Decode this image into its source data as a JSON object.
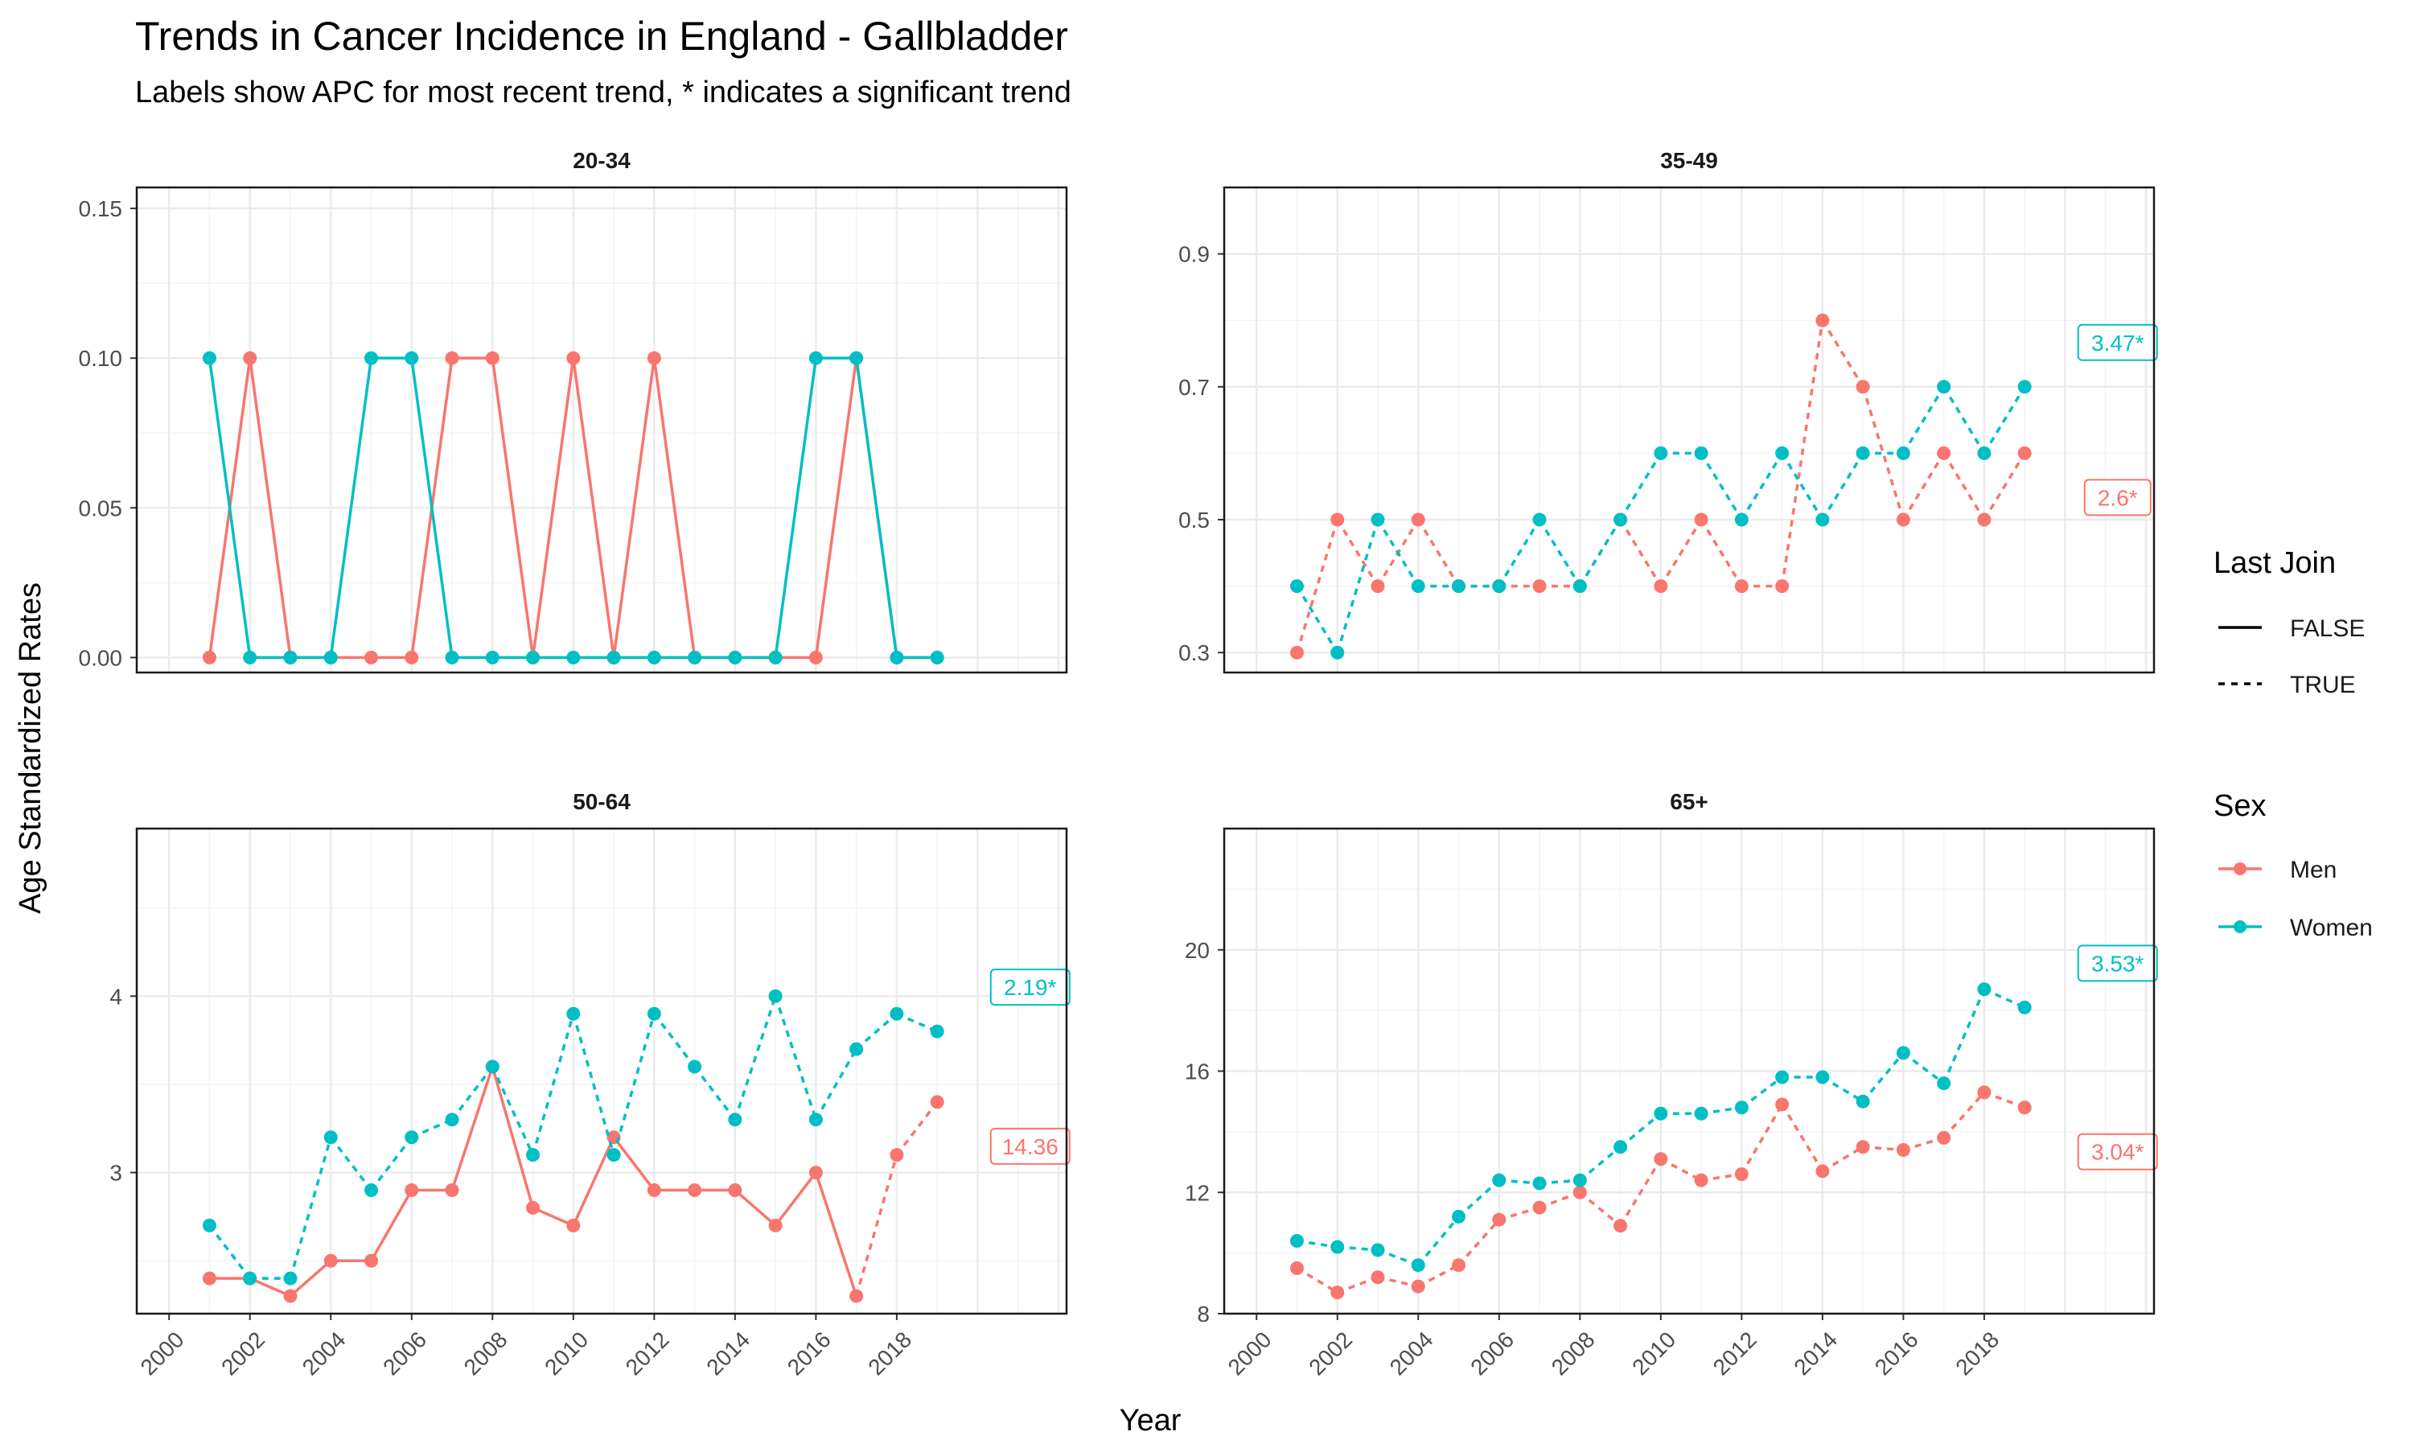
{
  "title": "Trends in Cancer Incidence in England - Gallbladder",
  "subtitle": "Labels show APC for most recent trend, * indicates a significant trend",
  "xlabel": "Year",
  "ylabel": "Age Standardized Rates",
  "colors": {
    "Men": "#F8766D",
    "Women": "#00BFC4",
    "grid_major": "#EBEBEB",
    "grid_minor": "#F4F4F4"
  },
  "legend": {
    "position": "right",
    "last_join": {
      "title": "Last Join",
      "items": [
        {
          "label": "FALSE",
          "linetype": "solid"
        },
        {
          "label": "TRUE",
          "linetype": "dashed"
        }
      ]
    },
    "sex": {
      "title": "Sex",
      "items": [
        {
          "label": "Men",
          "color": "#F8766D"
        },
        {
          "label": "Women",
          "color": "#00BFC4"
        }
      ]
    }
  },
  "chart_data": [
    {
      "type": "line",
      "panel": "20-34",
      "xlim": [
        1999.2,
        2022.2
      ],
      "ylim": [
        -0.005,
        0.157
      ],
      "x_ticks": [
        "2000",
        "2002",
        "2004",
        "2006",
        "2008",
        "2010",
        "2012",
        "2014",
        "2016",
        "2018"
      ],
      "y_ticks": [
        0.0,
        0.05,
        0.1,
        0.15
      ],
      "y_tick_labels": [
        "0.00",
        "0.05",
        "0.10",
        "0.15"
      ],
      "show_x_ticks": false,
      "series": [
        {
          "name": "Men",
          "x": [
            2001,
            2002,
            2003,
            2004,
            2005,
            2006,
            2007,
            2008,
            2009,
            2010,
            2011,
            2012,
            2013,
            2014,
            2015,
            2016,
            2017,
            2018,
            2019
          ],
          "y": [
            0,
            0.1,
            0,
            0,
            0,
            0,
            0.1,
            0.1,
            0,
            0.1,
            0,
            0.1,
            0,
            0,
            0,
            0,
            0.1,
            0,
            0
          ],
          "last_join_from": null,
          "apc": null
        },
        {
          "name": "Women",
          "x": [
            2001,
            2002,
            2003,
            2004,
            2005,
            2006,
            2007,
            2008,
            2009,
            2010,
            2011,
            2012,
            2013,
            2014,
            2015,
            2016,
            2017,
            2018,
            2019
          ],
          "y": [
            0.1,
            0,
            0,
            0,
            0.1,
            0.1,
            0,
            0,
            0,
            0,
            0,
            0,
            0,
            0,
            0,
            0.1,
            0.1,
            0,
            0
          ],
          "last_join_from": null,
          "apc": null
        }
      ]
    },
    {
      "type": "line",
      "panel": "35-49",
      "xlim": [
        1999.2,
        2022.2
      ],
      "ylim": [
        0.27,
        1.0
      ],
      "x_ticks": [
        "2000",
        "2002",
        "2004",
        "2006",
        "2008",
        "2010",
        "2012",
        "2014",
        "2016",
        "2018"
      ],
      "y_ticks": [
        0.3,
        0.5,
        0.7,
        0.9
      ],
      "y_tick_labels": [
        "0.3",
        "0.5",
        "0.7",
        "0.9"
      ],
      "show_x_ticks": false,
      "series": [
        {
          "name": "Men",
          "x": [
            2001,
            2002,
            2003,
            2004,
            2005,
            2006,
            2007,
            2008,
            2009,
            2010,
            2011,
            2012,
            2013,
            2014,
            2015,
            2016,
            2017,
            2018,
            2019
          ],
          "y": [
            0.3,
            0.5,
            0.4,
            0.5,
            0.4,
            0.4,
            0.4,
            0.4,
            0.5,
            0.4,
            0.5,
            0.4,
            0.4,
            0.8,
            0.7,
            0.5,
            0.6,
            0.5,
            0.6
          ],
          "last_join_from": 2001,
          "apc": "2.6*"
        },
        {
          "name": "Women",
          "x": [
            2001,
            2002,
            2003,
            2004,
            2005,
            2006,
            2007,
            2008,
            2009,
            2010,
            2011,
            2012,
            2013,
            2014,
            2015,
            2016,
            2017,
            2018,
            2019
          ],
          "y": [
            0.4,
            0.3,
            0.5,
            0.4,
            0.4,
            0.4,
            0.5,
            0.4,
            0.5,
            0.6,
            0.6,
            0.5,
            0.6,
            0.5,
            0.6,
            0.6,
            0.7,
            0.6,
            0.7
          ],
          "last_join_from": 2001,
          "apc": "3.47*"
        }
      ]
    },
    {
      "type": "line",
      "panel": "50-64",
      "xlim": [
        1999.2,
        2022.2
      ],
      "ylim": [
        2.2,
        4.95
      ],
      "x_ticks": [
        "2000",
        "2002",
        "2004",
        "2006",
        "2008",
        "2010",
        "2012",
        "2014",
        "2016",
        "2018"
      ],
      "y_ticks": [
        3,
        4
      ],
      "y_tick_labels": [
        "3",
        "4"
      ],
      "show_x_ticks": true,
      "series": [
        {
          "name": "Men",
          "x": [
            2001,
            2002,
            2003,
            2004,
            2005,
            2006,
            2007,
            2008,
            2009,
            2010,
            2011,
            2012,
            2013,
            2014,
            2015,
            2016,
            2017,
            2018,
            2019
          ],
          "y": [
            2.4,
            2.4,
            2.3,
            2.5,
            2.5,
            2.9,
            2.9,
            3.6,
            2.8,
            2.7,
            3.2,
            2.9,
            2.9,
            2.9,
            2.7,
            3.0,
            2.3,
            3.1,
            3.4
          ],
          "last_join_from": 2017,
          "apc": "14.36"
        },
        {
          "name": "Women",
          "x": [
            2001,
            2002,
            2003,
            2004,
            2005,
            2006,
            2007,
            2008,
            2009,
            2010,
            2011,
            2012,
            2013,
            2014,
            2015,
            2016,
            2017,
            2018,
            2019
          ],
          "y": [
            2.7,
            2.4,
            2.4,
            3.2,
            2.9,
            3.2,
            3.3,
            3.6,
            3.1,
            3.9,
            3.1,
            3.9,
            3.6,
            3.3,
            4.0,
            3.3,
            3.7,
            3.9,
            3.8
          ],
          "last_join_from": 2001,
          "apc": "2.19*"
        }
      ]
    },
    {
      "type": "line",
      "panel": "65+",
      "xlim": [
        1999.2,
        2022.2
      ],
      "ylim": [
        8.0,
        24.0
      ],
      "x_ticks": [
        "2000",
        "2002",
        "2004",
        "2006",
        "2008",
        "2010",
        "2012",
        "2014",
        "2016",
        "2018"
      ],
      "y_ticks": [
        8,
        12,
        16,
        20
      ],
      "y_tick_labels": [
        "8",
        "12",
        "16",
        "20"
      ],
      "show_x_ticks": true,
      "series": [
        {
          "name": "Men",
          "x": [
            2001,
            2002,
            2003,
            2004,
            2005,
            2006,
            2007,
            2008,
            2009,
            2010,
            2011,
            2012,
            2013,
            2014,
            2015,
            2016,
            2017,
            2018,
            2019
          ],
          "y": [
            9.5,
            8.7,
            9.2,
            8.9,
            9.6,
            11.1,
            11.5,
            12.0,
            10.9,
            13.1,
            12.4,
            12.6,
            14.9,
            12.7,
            13.5,
            13.4,
            13.8,
            15.3,
            14.8
          ],
          "last_join_from": 2001,
          "apc": "3.04*"
        },
        {
          "name": "Women",
          "x": [
            2001,
            2002,
            2003,
            2004,
            2005,
            2006,
            2007,
            2008,
            2009,
            2010,
            2011,
            2012,
            2013,
            2014,
            2015,
            2016,
            2017,
            2018,
            2019
          ],
          "y": [
            10.4,
            10.2,
            10.1,
            9.6,
            11.2,
            12.4,
            12.3,
            12.4,
            13.5,
            14.6,
            14.6,
            14.8,
            15.8,
            15.8,
            15.0,
            16.6,
            15.6,
            18.7,
            18.1
          ],
          "last_join_from": 2001,
          "apc": "3.53*"
        }
      ]
    }
  ]
}
